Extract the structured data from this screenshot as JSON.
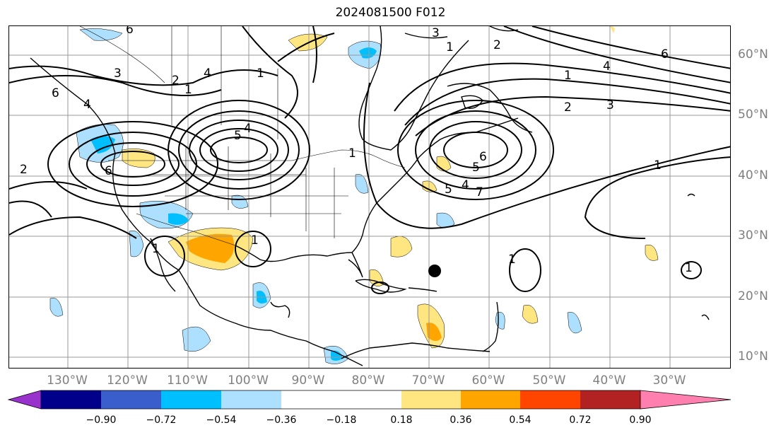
{
  "title": "2024081500 F012",
  "lon_labels": [
    "130°W",
    "120°W",
    "110°W",
    "100°W",
    "90°W",
    "80°W",
    "70°W",
    "60°W",
    "50°W",
    "40°W",
    "30°W"
  ],
  "lat_labels": [
    "60°N",
    "50°N",
    "40°N",
    "30°N",
    "20°N",
    "10°N"
  ],
  "colorbar": {
    "ticks": [
      "−0.90",
      "−0.72",
      "−0.54",
      "−0.36",
      "−0.18",
      "0.18",
      "0.36",
      "0.54",
      "0.72",
      "0.90"
    ],
    "colors": [
      "#9932CC",
      "#00008B",
      "#3A5FCD",
      "#00BFFF",
      "#ADDFFF",
      "#FFFFFF",
      "#FFE680",
      "#FFA500",
      "#FF4500",
      "#B22222",
      "#FF7FAF"
    ]
  },
  "contour_labels": [
    "6",
    "3",
    "2",
    "1",
    "4",
    "1",
    "5",
    "4",
    "6",
    "2",
    "6",
    "1",
    "1",
    "1",
    "3",
    "1",
    "2",
    "4",
    "6",
    "1",
    "2",
    "3",
    "6",
    "5",
    "4",
    "7",
    "1",
    "5",
    "4",
    "1",
    "1"
  ],
  "marker": "storm-center"
}
